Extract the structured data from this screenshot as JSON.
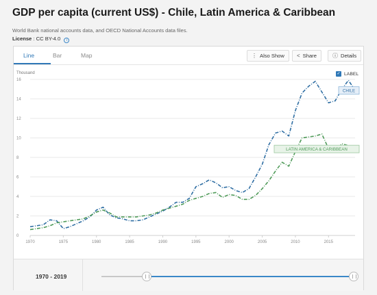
{
  "page": {
    "title": "GDP per capita (current US$) - Chile, Latin America & Caribbean",
    "source": "World Bank national accounts data, and OECD National Accounts data files.",
    "license_label": "License",
    "license_value": ": CC BY-4.0"
  },
  "tabs": [
    {
      "label": "Line",
      "active": true
    },
    {
      "label": "Bar",
      "active": false
    },
    {
      "label": "Map",
      "active": false
    }
  ],
  "toolbar": {
    "also_show": "Also Show",
    "share": "Share",
    "details": "Details"
  },
  "legend_toggle": {
    "label": "LABEL",
    "checked": true
  },
  "colors": {
    "chile": "#2f6ea3",
    "latam": "#4e9a58",
    "accent": "#2f78b7"
  },
  "chart_data": {
    "type": "line",
    "ylabel": "Thousand",
    "xlim": [
      1970,
      2019
    ],
    "ylim": [
      0,
      16
    ],
    "yticks": [
      0,
      2,
      4,
      6,
      8,
      10,
      12,
      14,
      16
    ],
    "xticks": [
      1970,
      1975,
      1980,
      1985,
      1990,
      1995,
      2000,
      2005,
      2010,
      2015
    ],
    "grid": true,
    "series": [
      {
        "name": "CHILE",
        "x": [
          1970,
          1971,
          1972,
          1973,
          1974,
          1975,
          1976,
          1977,
          1978,
          1979,
          1980,
          1981,
          1982,
          1983,
          1984,
          1985,
          1986,
          1987,
          1988,
          1989,
          1990,
          1991,
          1992,
          1993,
          1994,
          1995,
          1996,
          1997,
          1998,
          1999,
          2000,
          2001,
          2002,
          2003,
          2004,
          2005,
          2006,
          2007,
          2008,
          2009,
          2010,
          2011,
          2012,
          2013,
          2014,
          2015,
          2016,
          2017,
          2018,
          2019
        ],
        "values": [
          0.9,
          1.0,
          1.1,
          1.6,
          1.5,
          0.7,
          0.9,
          1.2,
          1.5,
          1.9,
          2.6,
          2.9,
          2.1,
          1.8,
          1.7,
          1.5,
          1.5,
          1.6,
          1.9,
          2.2,
          2.5,
          2.9,
          3.4,
          3.4,
          3.8,
          5.0,
          5.3,
          5.7,
          5.4,
          4.9,
          5.0,
          4.6,
          4.4,
          4.8,
          6.0,
          7.3,
          9.3,
          10.5,
          10.7,
          10.2,
          12.8,
          14.6,
          15.3,
          15.8,
          14.7,
          13.6,
          13.8,
          15.0,
          15.9,
          14.9
        ]
      },
      {
        "name": "LATIN AMERICA & CARIBBEAN",
        "x": [
          1970,
          1971,
          1972,
          1973,
          1974,
          1975,
          1976,
          1977,
          1978,
          1979,
          1980,
          1981,
          1982,
          1983,
          1984,
          1985,
          1986,
          1987,
          1988,
          1989,
          1990,
          1991,
          1992,
          1993,
          1994,
          1995,
          1996,
          1997,
          1998,
          1999,
          2000,
          2001,
          2002,
          2003,
          2004,
          2005,
          2006,
          2007,
          2008,
          2009,
          2010,
          2011,
          2012,
          2013,
          2014,
          2015,
          2016,
          2017,
          2018,
          2019
        ],
        "values": [
          0.6,
          0.7,
          0.8,
          1.0,
          1.3,
          1.4,
          1.5,
          1.6,
          1.7,
          2.0,
          2.4,
          2.6,
          2.3,
          1.9,
          1.9,
          1.9,
          1.9,
          2.0,
          2.1,
          2.3,
          2.6,
          2.8,
          3.0,
          3.2,
          3.6,
          3.8,
          4.0,
          4.3,
          4.4,
          3.9,
          4.2,
          4.1,
          3.7,
          3.7,
          4.1,
          4.8,
          5.6,
          6.6,
          7.5,
          7.1,
          8.6,
          10.0,
          10.1,
          10.2,
          10.4,
          8.9,
          8.6,
          9.4,
          9.2,
          8.9
        ]
      }
    ]
  },
  "range": {
    "label": "1970 - 2019",
    "start": 1970,
    "end": 2019
  }
}
